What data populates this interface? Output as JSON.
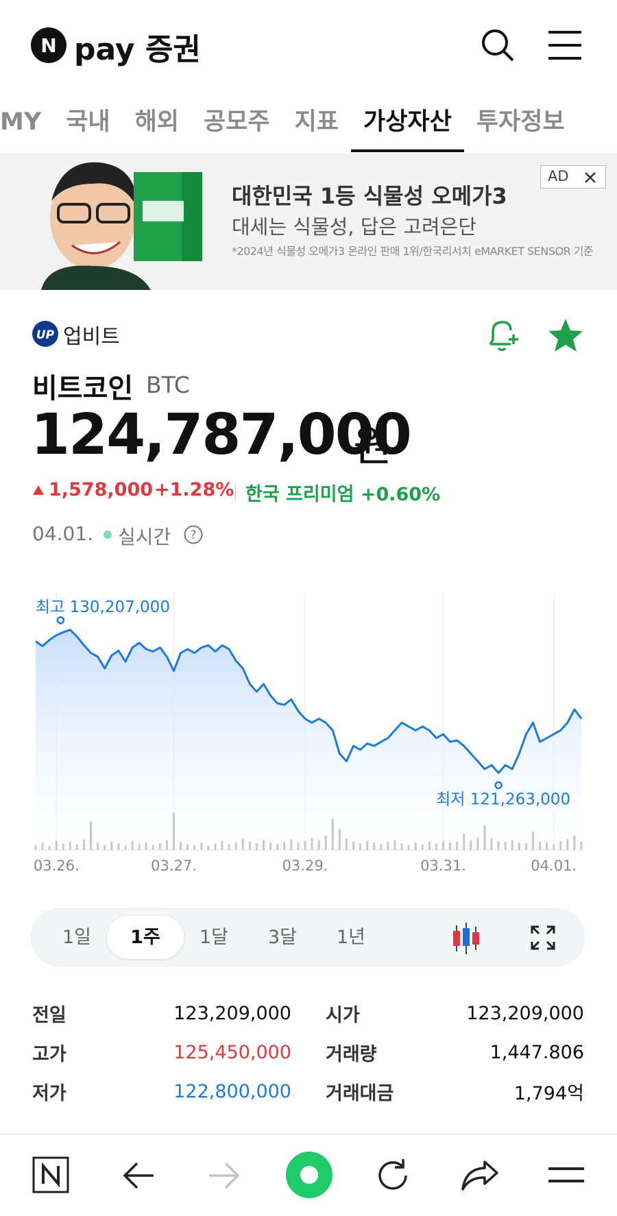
{
  "header": {
    "brand_mark": "N",
    "brand": "pay 증권"
  },
  "tabs": [
    "MY",
    "국내",
    "해외",
    "공모주",
    "지표",
    "가상자산",
    "투자정보"
  ],
  "active_tab": 5,
  "ad": {
    "badge": "AD",
    "headline": "대한민국 1등 식물성 오메가3",
    "subline": "대세는 식물성, 답은 고려은단",
    "note": "*2024년 식물성 오메가3 온라인 판매 1위/한국리서치 eMARKET SENSOR 기준"
  },
  "asset": {
    "exchange": "업비트",
    "name": "비트코인",
    "symbol": "BTC",
    "price": "124,787,000",
    "currency": "원",
    "change": "1,578,000",
    "change_pct": "+1.28%",
    "premium": "한국 프리미엄 +0.60%",
    "date": "04.01.",
    "status": "실시간"
  },
  "chart_data": {
    "type": "line",
    "annotations": {
      "high": "최고 130,207,000",
      "low": "최저 121,263,000"
    },
    "categories": [
      null,
      null,
      null,
      "03.26.",
      null,
      null,
      null,
      null,
      null,
      null,
      null,
      null,
      null,
      null,
      null,
      null,
      null,
      null,
      null,
      null,
      "03.27.",
      null,
      null,
      null,
      null,
      null,
      null,
      null,
      null,
      null,
      null,
      null,
      null,
      null,
      null,
      null,
      null,
      null,
      null,
      "03.29.",
      null,
      null,
      null,
      null,
      null,
      null,
      null,
      null,
      null,
      null,
      null,
      null,
      null,
      null,
      null,
      null,
      null,
      null,
      null,
      "03.31.",
      null,
      null,
      null,
      null,
      null,
      null,
      null,
      null,
      null,
      null,
      null,
      null,
      null,
      null,
      null,
      "04.01.",
      null,
      null,
      null,
      null
    ],
    "series": [
      {
        "color": "#1a7ce0",
        "values": [
          129480000,
          129190000,
          129580000,
          129870000,
          130060000,
          130207000,
          129770000,
          129240000,
          128760000,
          128520000,
          127790000,
          128610000,
          128900000,
          128220000,
          129100000,
          129390000,
          129000000,
          128850000,
          129100000,
          128520000,
          127640000,
          128760000,
          129000000,
          128760000,
          129100000,
          129240000,
          128850000,
          129240000,
          129000000,
          128270000,
          127790000,
          126820000,
          126340000,
          126820000,
          126100000,
          125610000,
          125520000,
          125860000,
          125130000,
          124650000,
          124400000,
          124650000,
          124400000,
          123920000,
          122470000,
          121990000,
          122950000,
          122710000,
          123100000,
          122950000,
          123200000,
          123440000,
          123920000,
          124400000,
          124160000,
          123920000,
          124160000,
          123920000,
          123440000,
          123680000,
          123200000,
          123290000,
          122950000,
          122470000,
          121990000,
          121500000,
          121750000,
          121263000,
          121750000,
          121500000,
          122470000,
          123680000,
          124400000,
          123200000,
          123440000,
          123680000,
          123920000,
          124400000,
          125230000,
          124650000
        ]
      },
      {
        "color": "#c8c8c8",
        "axis": "y2",
        "values": [
          12,
          18,
          10,
          22,
          15,
          20,
          14,
          25,
          70,
          18,
          12,
          20,
          16,
          10,
          22,
          14,
          18,
          12,
          16,
          24,
          90,
          20,
          14,
          12,
          18,
          10,
          16,
          22,
          14,
          18,
          28,
          20,
          16,
          24,
          18,
          14,
          20,
          26,
          18,
          22,
          30,
          24,
          35,
          75,
          50,
          28,
          20,
          16,
          22,
          18,
          14,
          20,
          24,
          16,
          12,
          18,
          14,
          20,
          16,
          22,
          18,
          20,
          40,
          24,
          30,
          60,
          28,
          22,
          20,
          24,
          18,
          16,
          45,
          20,
          18,
          14,
          22,
          26,
          35,
          20
        ]
      }
    ],
    "ylim": [
      120600000,
      132300000
    ],
    "y2lim": [
      0,
      100
    ],
    "grid": true
  },
  "periods": [
    "1일",
    "1주",
    "1달",
    "3달",
    "1년"
  ],
  "active_period": 1,
  "stats": {
    "rows": [
      [
        "전일",
        "123,209,000",
        "시가",
        "123,209,000"
      ],
      [
        "고가",
        "125,450,000",
        "거래량",
        "1,447.806"
      ],
      [
        "저가",
        "122,800,000",
        "거래대금",
        "1,794억"
      ]
    ]
  }
}
